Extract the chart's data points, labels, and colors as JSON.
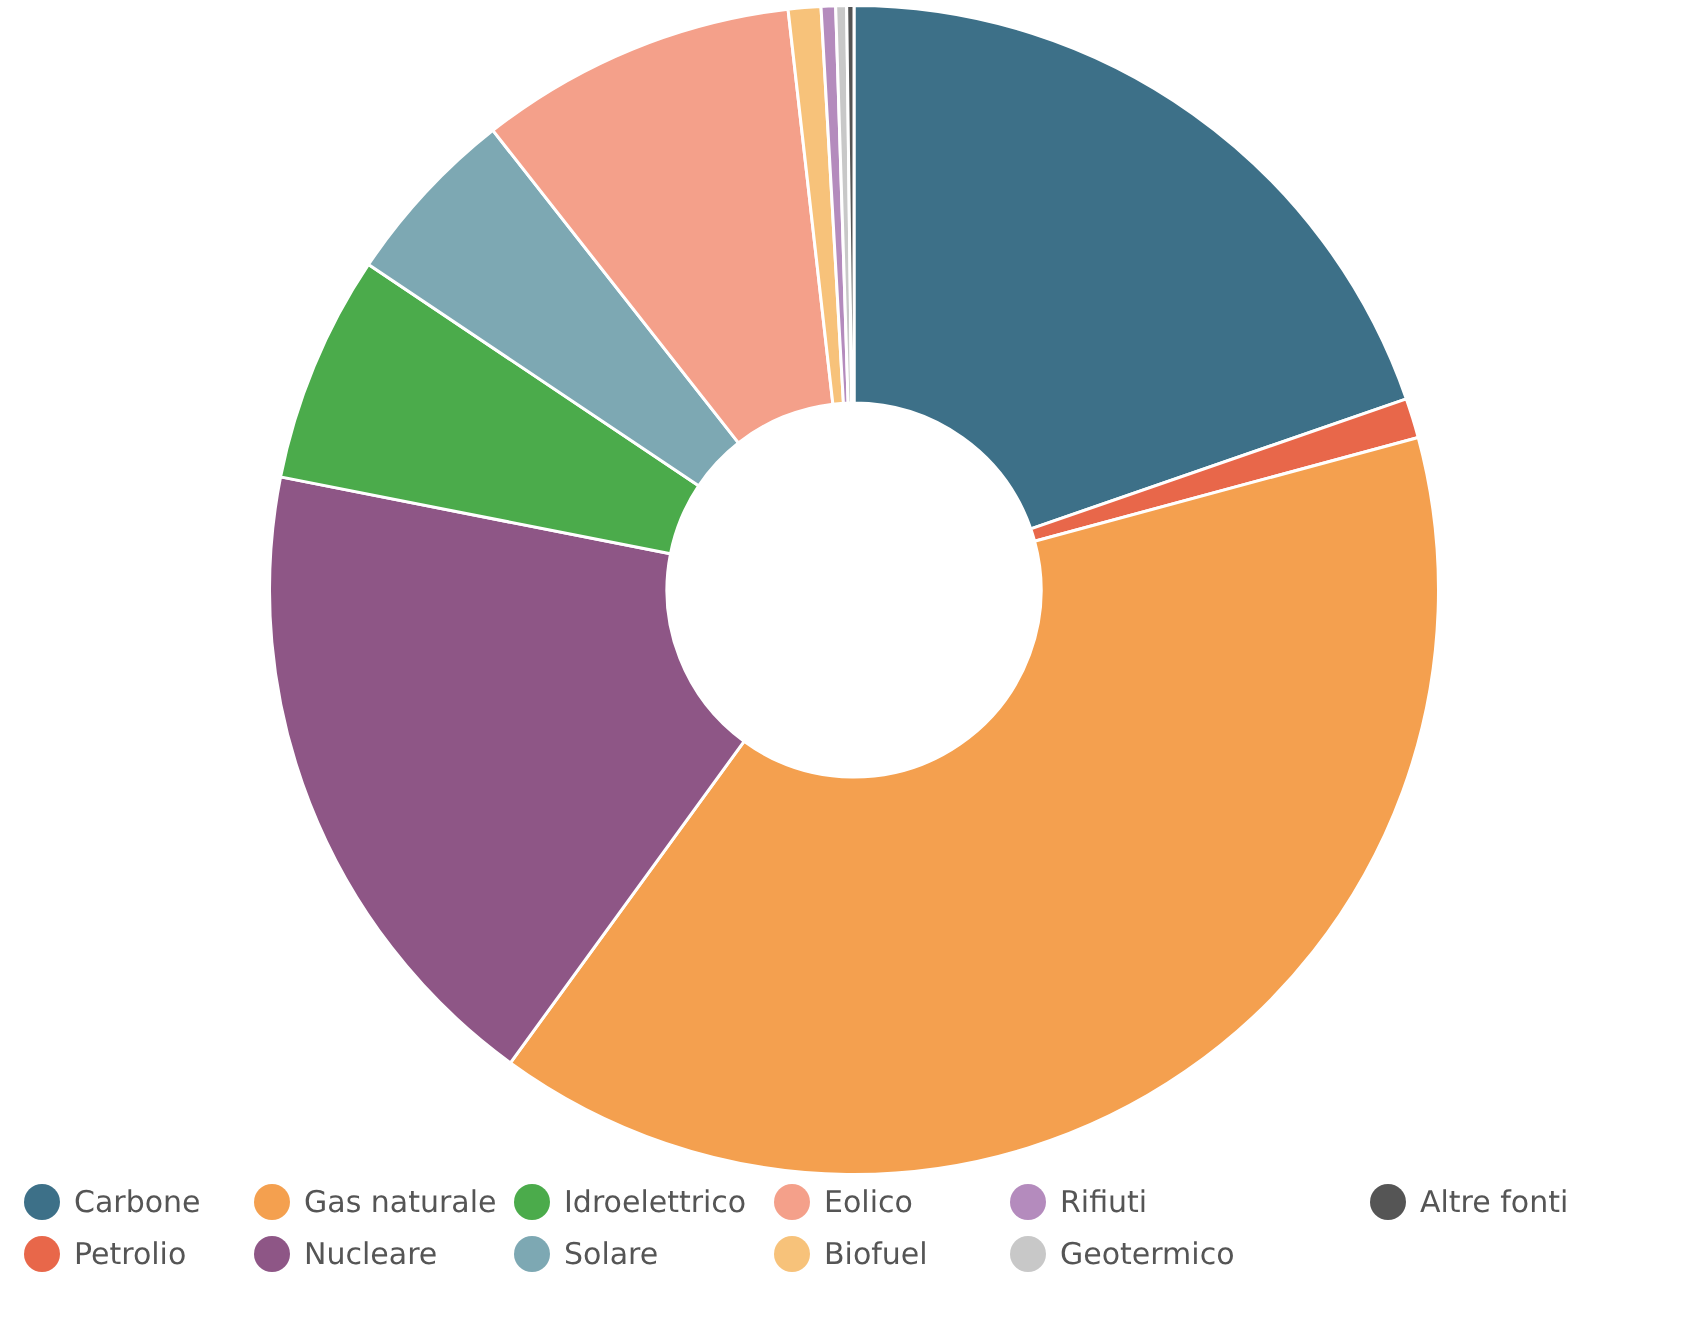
{
  "chart_data": {
    "type": "donut",
    "categories": [
      "Carbone",
      "Petrolio",
      "Gas naturale",
      "Nucleare",
      "Idroelettrico",
      "Solare",
      "Eolico",
      "Biofuel",
      "Rifiuti",
      "Geotermico",
      "Altre fonti"
    ],
    "values": [
      19.7,
      1.1,
      39.2,
      18.1,
      6.3,
      5.0,
      8.8,
      0.9,
      0.4,
      0.3,
      0.2
    ],
    "colors": [
      "#3d7088",
      "#e8674a",
      "#f4a04f",
      "#8e5686",
      "#4bab4b",
      "#7da8b3",
      "#f4a08a",
      "#f7c27a",
      "#b48bbd",
      "#c8c8c8",
      "#555555"
    ],
    "legend": "bottom"
  }
}
